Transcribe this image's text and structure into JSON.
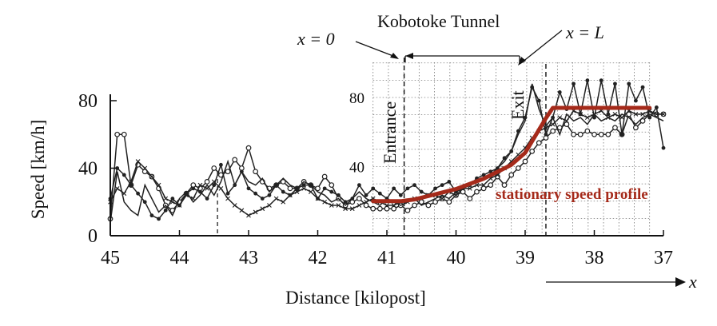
{
  "chart_data": {
    "type": "line",
    "xlabel": "Distance [kilopost]",
    "ylabel": "Speed [km/h]",
    "x_ticks": [
      "45",
      "44",
      "43",
      "42",
      "41",
      "40",
      "39",
      "38",
      "37"
    ],
    "y_ticks": [
      "0",
      "40",
      "80"
    ],
    "inner_y_ticks": [
      "40",
      "80"
    ],
    "xlim": [
      45,
      37
    ],
    "ylim": [
      0,
      80
    ],
    "x_reversed": true,
    "grid": "dotted grid over tunnel section only",
    "annotations": {
      "tunnel_name": "Kobotoke Tunnel",
      "x0": "x = 0",
      "xL": "x = L",
      "entrance": "Entrance",
      "exit": "Exit",
      "x_direction": "x",
      "profile_label": "stationary speed profile"
    },
    "colors": {
      "profile": "#a52a1a",
      "data": "#222222",
      "grid": "#777777"
    },
    "series": [
      {
        "marker": "open-circle",
        "x": [
          45,
          44.9,
          44.8,
          44.7,
          44.6,
          44.5,
          44.4,
          44.3,
          44.2,
          44.1,
          44,
          43.9,
          43.8,
          43.7,
          43.6,
          43.5,
          43.4,
          43.3,
          43.2,
          43.1,
          43,
          42.9,
          42.8,
          42.7,
          42.6,
          42.5,
          42.4,
          42.3,
          42.2,
          42.1,
          42,
          41.9,
          41.8,
          41.7,
          41.6,
          41.5,
          41.4,
          41.3,
          41.2,
          41.1,
          41,
          40.9,
          40.8,
          40.7,
          40.6,
          40.5,
          40.4,
          40.3,
          40.2,
          40.1,
          40,
          39.9,
          39.8,
          39.7,
          39.6,
          39.5,
          39.4,
          39.3,
          39.2,
          39.1,
          39,
          38.9,
          38.8,
          38.7,
          38.6,
          38.5,
          38.4,
          38.3,
          38.2,
          38.1,
          38,
          37.9,
          37.8,
          37.7,
          37.6,
          37.5,
          37.4,
          37.3,
          37.2,
          37.1,
          37
        ],
        "values": [
          10,
          60,
          60,
          30,
          42,
          38,
          35,
          28,
          18,
          15,
          20,
          25,
          30,
          28,
          32,
          40,
          36,
          38,
          45,
          40,
          52,
          38,
          32,
          28,
          30,
          32,
          28,
          28,
          32,
          30,
          28,
          35,
          30,
          22,
          18,
          20,
          22,
          18,
          16,
          16,
          16,
          16,
          18,
          15,
          18,
          20,
          18,
          20,
          22,
          20,
          24,
          26,
          22,
          26,
          28,
          30,
          35,
          30,
          36,
          40,
          44,
          50,
          55,
          58,
          62,
          64,
          66,
          60,
          60,
          62,
          60,
          60,
          60,
          64,
          60,
          72,
          64,
          68,
          72,
          72,
          72
        ]
      },
      {
        "marker": "filled-dot",
        "x": [
          45,
          44.9,
          44.8,
          44.7,
          44.6,
          44.5,
          44.4,
          44.3,
          44.2,
          44.1,
          44,
          43.9,
          43.8,
          43.7,
          43.6,
          43.5,
          43.4,
          43.3,
          43.2,
          43.1,
          43,
          42.9,
          42.8,
          42.7,
          42.6,
          42.5,
          42.4,
          42.3,
          42.2,
          42.1,
          42,
          41.9,
          41.8,
          41.7,
          41.6,
          41.5,
          41.4,
          41.3,
          41.2,
          41.1,
          41,
          40.9,
          40.8,
          40.7,
          40.6,
          40.5,
          40.4,
          40.3,
          40.2,
          40.1,
          40,
          39.9,
          39.8,
          39.7,
          39.6,
          39.5,
          39.4,
          39.3,
          39.2,
          39.1,
          39,
          38.9,
          38.8,
          38.7,
          38.6,
          38.5,
          38.4,
          38.3,
          38.2,
          38.1,
          38,
          37.9,
          37.8,
          37.7,
          37.6,
          37.5,
          37.4,
          37.3,
          37.2,
          37.1,
          37
        ],
        "values": [
          22,
          40,
          36,
          30,
          25,
          20,
          12,
          10,
          15,
          22,
          18,
          25,
          28,
          26,
          22,
          30,
          42,
          25,
          30,
          38,
          28,
          25,
          22,
          24,
          30,
          26,
          24,
          28,
          30,
          30,
          22,
          28,
          26,
          24,
          20,
          22,
          30,
          24,
          28,
          25,
          22,
          28,
          24,
          28,
          30,
          26,
          24,
          28,
          30,
          32,
          26,
          28,
          30,
          34,
          36,
          38,
          40,
          46,
          50,
          62,
          70,
          88,
          80,
          60,
          70,
          85,
          75,
          90,
          72,
          92,
          70,
          92,
          72,
          90,
          60,
          90,
          80,
          88,
          70,
          76,
          52
        ]
      },
      {
        "marker": "cross",
        "x": [
          45,
          44.9,
          44.8,
          44.7,
          44.6,
          44.5,
          44.4,
          44.3,
          44.2,
          44.1,
          44,
          43.9,
          43.8,
          43.7,
          43.6,
          43.5,
          43.4,
          43.3,
          43.2,
          43.1,
          43,
          42.9,
          42.8,
          42.7,
          42.6,
          42.5,
          42.4,
          42.3,
          42.2,
          42.1,
          42,
          41.9,
          41.8,
          41.7,
          41.6,
          41.5,
          41.4,
          41.3,
          41.2,
          41.1,
          41,
          40.9,
          40.8,
          40.7,
          40.6,
          40.5,
          40.4,
          40.3,
          40.2,
          40.1,
          40,
          39.9,
          39.8,
          39.7,
          39.6,
          39.5,
          39.4,
          39.3,
          39.2,
          39.1,
          39,
          38.9,
          38.8,
          38.7,
          38.6,
          38.5,
          38.4,
          38.3,
          38.2,
          38.1,
          38,
          37.9,
          37.8,
          37.7,
          37.6,
          37.5,
          37.4,
          37.3,
          37.2,
          37.1,
          37
        ],
        "values": [
          20,
          28,
          25,
          32,
          44,
          40,
          35,
          30,
          22,
          20,
          18,
          24,
          22,
          30,
          28,
          32,
          28,
          22,
          18,
          15,
          12,
          14,
          16,
          18,
          22,
          20,
          24,
          26,
          28,
          26,
          22,
          20,
          18,
          18,
          16,
          16,
          18,
          20,
          22,
          20,
          18,
          18,
          20,
          20,
          22,
          22,
          24,
          24,
          22,
          26,
          24,
          28,
          28,
          30,
          30,
          34,
          36,
          40,
          44,
          48,
          52,
          58,
          62,
          64,
          66,
          70,
          68,
          74,
          72,
          70,
          72,
          74,
          70,
          72,
          70,
          74,
          72,
          72,
          74,
          72,
          72
        ]
      },
      {
        "marker": "line",
        "x": [
          45,
          44.9,
          44.8,
          44.7,
          44.6,
          44.5,
          44.4,
          44.3,
          44.2,
          44.1,
          44,
          43.9,
          43.8,
          43.7,
          43.6,
          43.5,
          43.4,
          43.3,
          43.2,
          43.1,
          43,
          42.9,
          42.8,
          42.7,
          42.6,
          42.5,
          42.4,
          42.3,
          42.2,
          42.1,
          42,
          41.9,
          41.8,
          41.7,
          41.6,
          41.5,
          41.4,
          41.3,
          41.2,
          41.1,
          41,
          40.9,
          40.8,
          40.7,
          40.6,
          40.5,
          40.4,
          40.3,
          40.2,
          40.1,
          40,
          39.9,
          39.8,
          39.7,
          39.6,
          39.5,
          39.4,
          39.3,
          39.2,
          39.1,
          39,
          38.9,
          38.8,
          38.7,
          38.6,
          38.5,
          38.4,
          38.3,
          38.2,
          38.1,
          38,
          37.9,
          37.8,
          37.7,
          37.6,
          37.5,
          37.4,
          37.3,
          37.2,
          37.1,
          37
        ],
        "values": [
          8,
          38,
          20,
          15,
          12,
          30,
          22,
          14,
          18,
          12,
          22,
          26,
          20,
          24,
          30,
          24,
          32,
          44,
          30,
          38,
          32,
          30,
          34,
          26,
          30,
          34,
          30,
          28,
          32,
          30,
          26,
          24,
          20,
          22,
          18,
          22,
          26,
          22,
          20,
          18,
          22,
          20,
          18,
          20,
          22,
          18,
          20,
          22,
          24,
          22,
          26,
          28,
          30,
          32,
          34,
          36,
          40,
          44,
          50,
          60,
          68,
          90,
          75,
          65,
          70,
          60,
          72,
          68,
          70,
          66,
          72,
          68,
          70,
          68,
          72,
          70,
          66,
          70,
          72,
          70,
          68
        ]
      }
    ],
    "stationary_profile": {
      "x": [
        41.2,
        41.0,
        40.8,
        40.6,
        40.4,
        40.2,
        40.0,
        39.8,
        39.6,
        39.4,
        39.2,
        39.0,
        38.85,
        38.7,
        38.6,
        37.2
      ],
      "values": [
        20,
        20,
        20,
        21,
        23,
        25,
        27,
        30,
        33,
        37,
        41,
        48,
        58,
        68,
        74,
        74
      ]
    },
    "tunnel": {
      "entrance_x": 40.75,
      "exit_x": 38.7,
      "grid_start_x": 41.2,
      "grid_end_x": 37.2
    }
  }
}
